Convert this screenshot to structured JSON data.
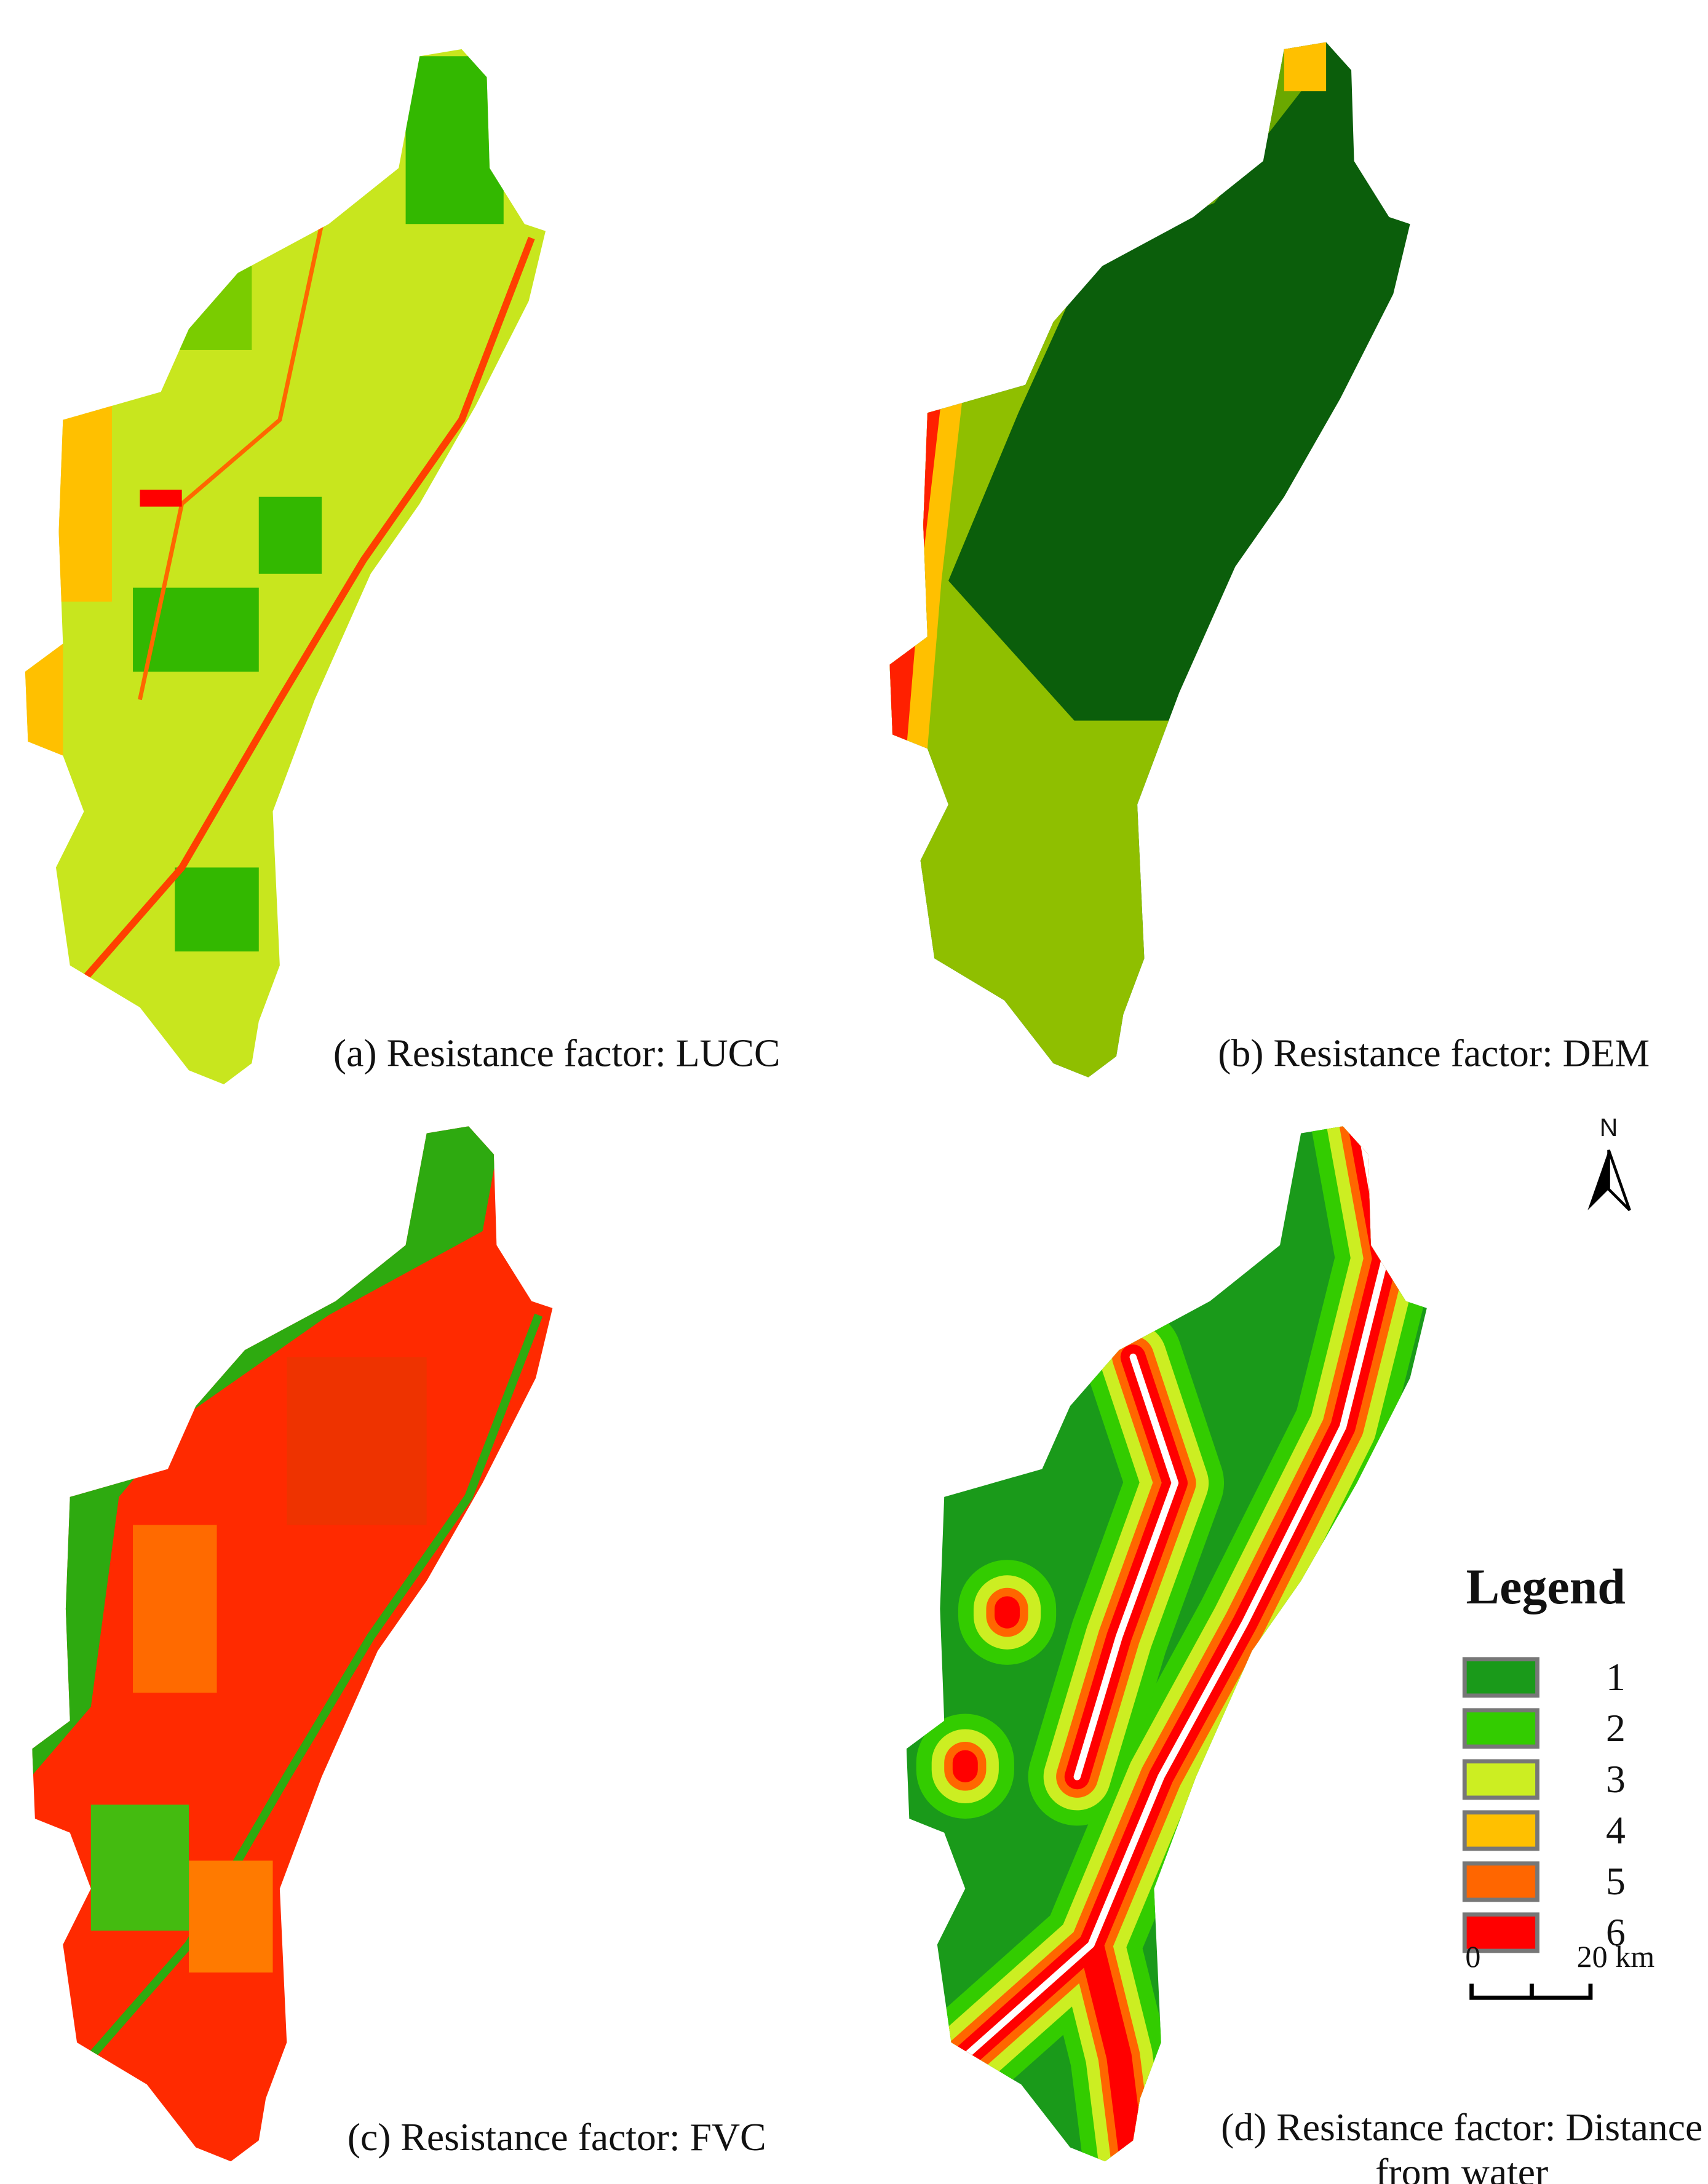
{
  "panels": [
    {
      "caption_lines": [
        "(a) Resistance factor: LUCC"
      ]
    },
    {
      "caption_lines": [
        "(b) Resistance factor: DEM"
      ]
    },
    {
      "caption_lines": [
        "(c) Resistance factor: FVC"
      ]
    },
    {
      "caption_lines": [
        "(d) Resistance factor: Distance",
        "from water"
      ]
    }
  ],
  "north_arrow": {
    "label": "N"
  },
  "legend": {
    "title": "Legend",
    "items": [
      {
        "label": "1",
        "color": "#1a9a1a"
      },
      {
        "label": "2",
        "color": "#33cc00"
      },
      {
        "label": "3",
        "color": "#ccee22"
      },
      {
        "label": "4",
        "color": "#ffc000"
      },
      {
        "label": "5",
        "color": "#ff6600"
      },
      {
        "label": "6",
        "color": "#ff0000"
      }
    ]
  },
  "scale_bar": {
    "labels": [
      "0",
      "20 km"
    ]
  }
}
